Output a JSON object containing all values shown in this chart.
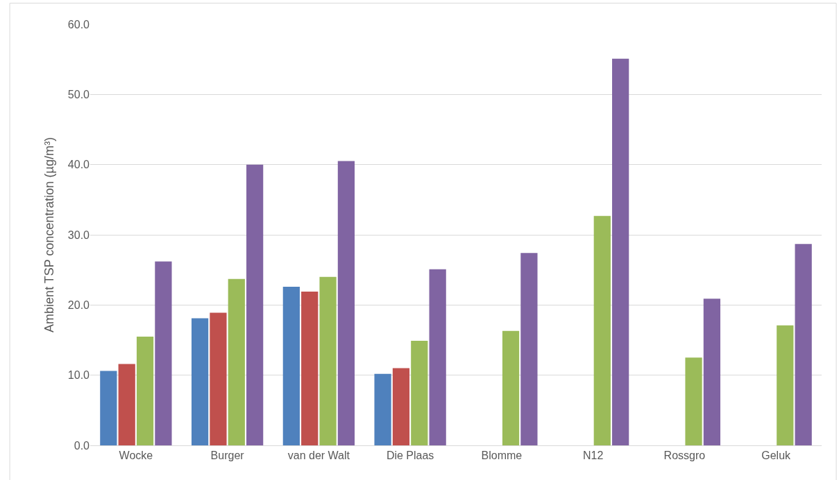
{
  "chart_data": {
    "type": "bar",
    "ylabel": "Ambient TSP concentration (µg/m³)",
    "categories": [
      "Wocke",
      "Burger",
      "van der Walt",
      "Die Plaas",
      "Blomme",
      "N12",
      "Rossgro",
      "Geluk"
    ],
    "series": [
      {
        "color": "#4f81bd",
        "values": [
          10.6,
          18.1,
          22.6,
          10.2,
          null,
          null,
          null,
          null
        ]
      },
      {
        "color": "#c0504d",
        "values": [
          11.6,
          18.9,
          21.9,
          11.0,
          null,
          null,
          null,
          null
        ]
      },
      {
        "color": "#9bbb59",
        "values": [
          15.5,
          23.7,
          24.0,
          14.9,
          16.3,
          32.7,
          12.5,
          17.1
        ]
      },
      {
        "color": "#8064a2",
        "values": [
          26.2,
          40.0,
          40.5,
          25.1,
          27.4,
          55.1,
          20.9,
          28.7
        ]
      }
    ],
    "ylim": [
      0,
      60
    ],
    "yticks": [
      {
        "value": 0,
        "label": "0.0"
      },
      {
        "value": 10,
        "label": "10.0"
      },
      {
        "value": 20,
        "label": "20.0"
      },
      {
        "value": 30,
        "label": "30.0"
      },
      {
        "value": 40,
        "label": "40.0"
      },
      {
        "value": 50,
        "label": "50.0"
      },
      {
        "value": 60,
        "label": "60.0"
      }
    ],
    "grid": "y"
  }
}
